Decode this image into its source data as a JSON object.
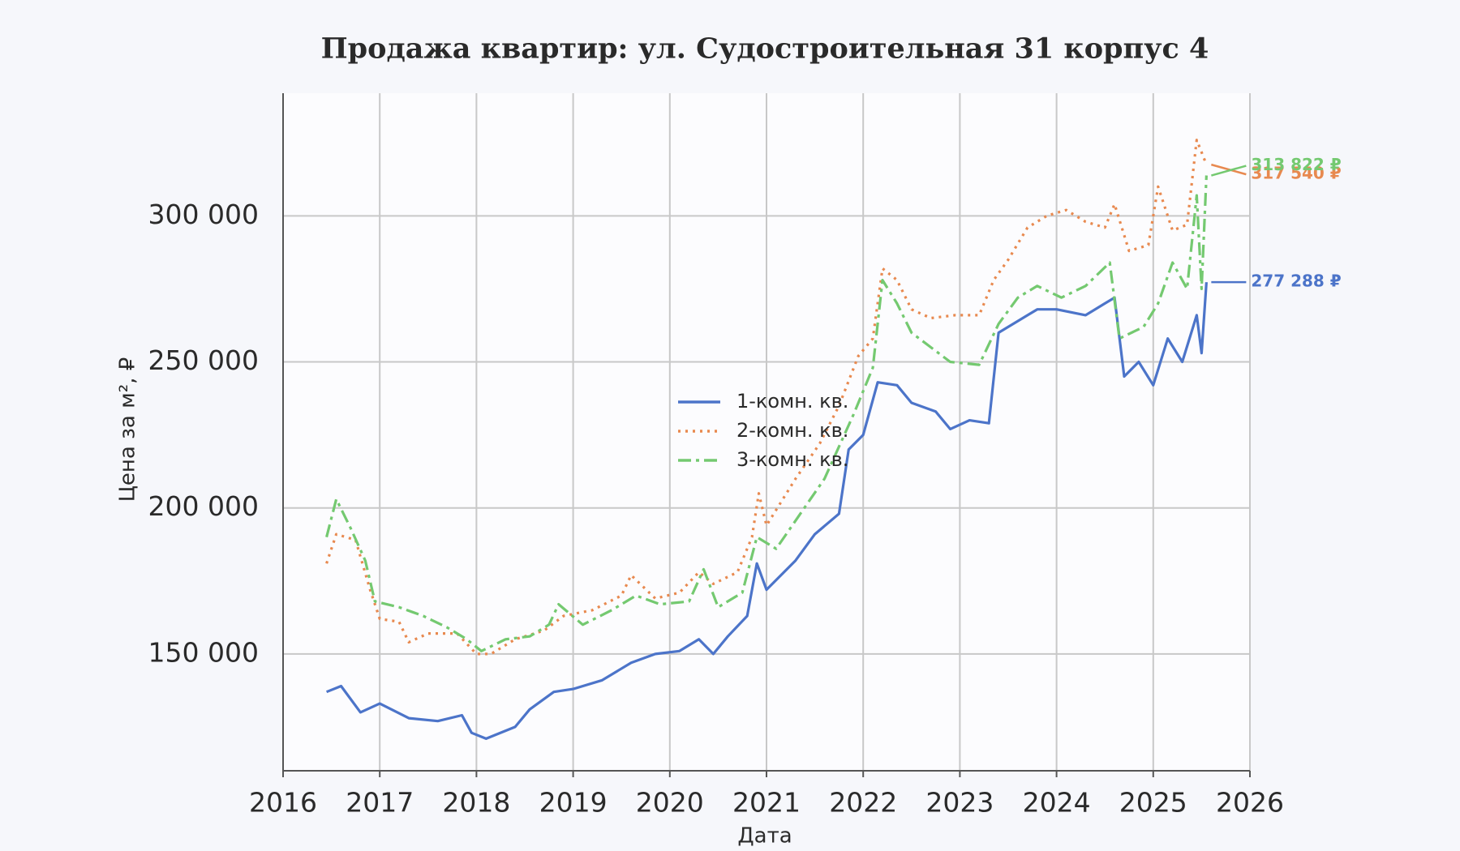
{
  "chart_data": {
    "type": "line",
    "title": "Продажа квартир: ул. Судостроительная 31 корпус 4",
    "x_label": "Дата",
    "y_label": "Цена за м², ₽",
    "xlim": [
      2016,
      2026
    ],
    "xticks": [
      2016,
      2017,
      2018,
      2019,
      2020,
      2021,
      2022,
      2023,
      2024,
      2025,
      2026
    ],
    "ylim": [
      110000,
      342000
    ],
    "yticks": [
      {
        "value": 150000,
        "label": "150 000"
      },
      {
        "value": 200000,
        "label": "200 000"
      },
      {
        "value": 250000,
        "label": "250 000"
      },
      {
        "value": 300000,
        "label": "300 000"
      }
    ],
    "grid": true,
    "legend": "center",
    "series": [
      {
        "name": "1-комн. кв.",
        "color": "#4c74c9",
        "style": "solid",
        "end_label": "277 288 ₽",
        "x": [
          2016.45,
          2016.6,
          2016.8,
          2017.0,
          2017.3,
          2017.6,
          2017.85,
          2017.95,
          2018.1,
          2018.4,
          2018.55,
          2018.8,
          2019.0,
          2019.3,
          2019.6,
          2019.85,
          2020.1,
          2020.3,
          2020.45,
          2020.6,
          2020.8,
          2020.9,
          2021.0,
          2021.3,
          2021.5,
          2021.75,
          2021.85,
          2022.0,
          2022.15,
          2022.35,
          2022.5,
          2022.75,
          2022.9,
          2023.1,
          2023.3,
          2023.4,
          2023.6,
          2023.8,
          2024.0,
          2024.3,
          2024.5,
          2024.6,
          2024.7,
          2024.85,
          2025.0,
          2025.15,
          2025.3,
          2025.45,
          2025.5,
          2025.55
        ],
        "values": [
          137000,
          139000,
          130000,
          133000,
          128000,
          127000,
          129000,
          123000,
          121000,
          125000,
          131000,
          137000,
          138000,
          141000,
          147000,
          150000,
          151000,
          155000,
          150000,
          156000,
          163000,
          181000,
          172000,
          182000,
          191000,
          198000,
          220000,
          225000,
          243000,
          242000,
          236000,
          233000,
          227000,
          230000,
          229000,
          260000,
          264000,
          268000,
          268000,
          266000,
          270000,
          272000,
          245000,
          250000,
          242000,
          258000,
          250000,
          266000,
          253000,
          277288
        ]
      },
      {
        "name": "2-комн. кв.",
        "color": "#e8894f",
        "style": "dotted",
        "end_label": "317 540 ₽",
        "x": [
          2016.45,
          2016.55,
          2016.75,
          2016.9,
          2017.0,
          2017.2,
          2017.3,
          2017.5,
          2017.8,
          2018.0,
          2018.15,
          2018.4,
          2018.7,
          2018.9,
          2019.2,
          2019.5,
          2019.6,
          2019.85,
          2020.1,
          2020.3,
          2020.45,
          2020.7,
          2020.85,
          2020.92,
          2021.0,
          2021.3,
          2021.55,
          2021.75,
          2021.95,
          2022.1,
          2022.2,
          2022.35,
          2022.5,
          2022.7,
          2022.95,
          2023.2,
          2023.35,
          2023.5,
          2023.7,
          2023.9,
          2024.1,
          2024.3,
          2024.5,
          2024.6,
          2024.75,
          2024.95,
          2025.05,
          2025.2,
          2025.35,
          2025.45,
          2025.55
        ],
        "values": [
          181000,
          191000,
          189000,
          172000,
          162000,
          161000,
          154000,
          157000,
          157000,
          150000,
          150000,
          155000,
          158000,
          163000,
          165000,
          170000,
          177000,
          169000,
          171000,
          178000,
          174000,
          178000,
          190000,
          205000,
          194000,
          210000,
          222000,
          235000,
          252000,
          258000,
          282000,
          278000,
          268000,
          265000,
          266000,
          266000,
          278000,
          285000,
          296000,
          300000,
          302000,
          298000,
          296000,
          304000,
          288000,
          290000,
          310000,
          295000,
          297000,
          326000,
          317540
        ]
      },
      {
        "name": "3-комн. кв.",
        "color": "#74c970",
        "style": "dashdot",
        "end_label": "313 822 ₽",
        "x": [
          2016.45,
          2016.55,
          2016.7,
          2016.85,
          2016.95,
          2017.2,
          2017.45,
          2017.7,
          2017.9,
          2018.05,
          2018.3,
          2018.55,
          2018.75,
          2018.85,
          2019.1,
          2019.4,
          2019.65,
          2019.9,
          2020.2,
          2020.35,
          2020.5,
          2020.75,
          2020.9,
          2021.1,
          2021.35,
          2021.6,
          2021.9,
          2022.1,
          2022.2,
          2022.35,
          2022.5,
          2022.7,
          2022.9,
          2023.2,
          2023.4,
          2023.6,
          2023.8,
          2024.05,
          2024.3,
          2024.55,
          2024.65,
          2024.9,
          2025.05,
          2025.2,
          2025.35,
          2025.45,
          2025.5,
          2025.55
        ],
        "values": [
          190000,
          203000,
          193000,
          182000,
          168000,
          166000,
          163000,
          159000,
          155000,
          151000,
          155000,
          156000,
          160000,
          167000,
          160000,
          165000,
          170000,
          167000,
          168000,
          179000,
          166000,
          171000,
          190000,
          186000,
          198000,
          210000,
          232000,
          248000,
          278000,
          270000,
          260000,
          255000,
          250000,
          249000,
          263000,
          272000,
          276000,
          272000,
          276000,
          284000,
          258000,
          262000,
          270000,
          284000,
          275000,
          307000,
          275000,
          313822
        ]
      }
    ]
  }
}
